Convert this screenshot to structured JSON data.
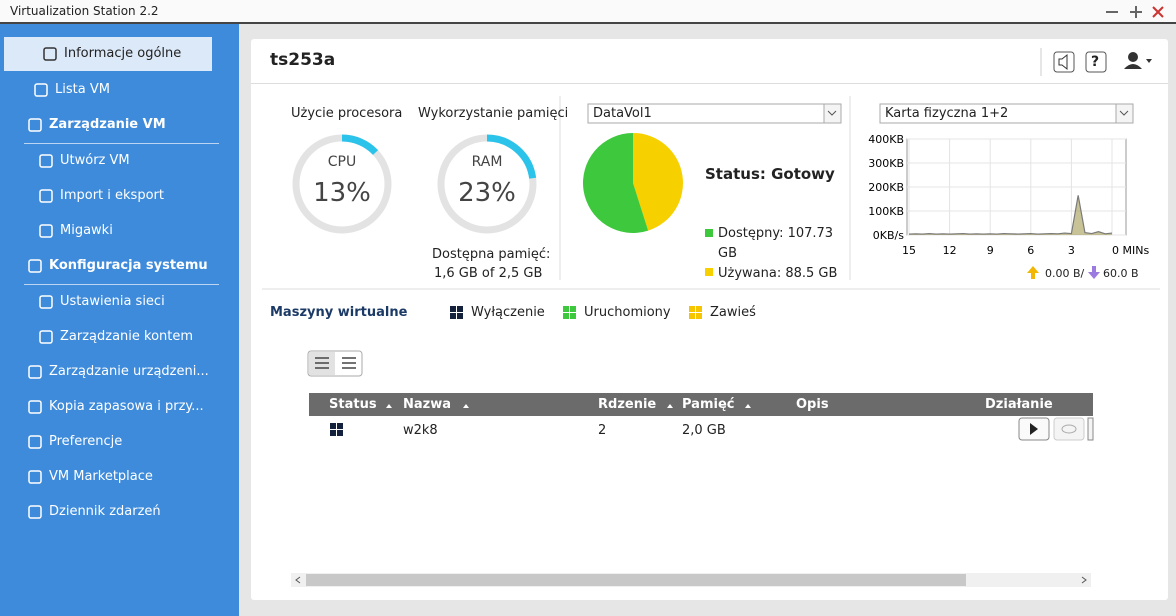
{
  "window": {
    "title": "Virtualization Station 2.2"
  },
  "sidebar": {
    "items": [
      "Informacje ogólne",
      "Lista VM",
      "Zarządzanie VM",
      "Utwórz VM",
      "Import i eksport",
      "Migawki",
      "Konfiguracja systemu",
      "Ustawienia sieci",
      "Zarządzanie kontem",
      "Zarządzanie urządzeni...",
      "Kopia zapasowa i przy...",
      "Preferencje",
      "VM Marketplace",
      "Dziennik zdarzeń"
    ]
  },
  "header": {
    "title": "ts253a",
    "help": "?"
  },
  "cpu": {
    "label": "Użycie procesora",
    "name": "CPU",
    "value": 13,
    "value_label": "13%"
  },
  "ram": {
    "label": "Wykorzystanie pamięci",
    "name": "RAM",
    "value": 23,
    "value_label": "23%",
    "available_label": "Dostępna pamięć:",
    "available": "1,6 GB of 2,5 GB"
  },
  "storage": {
    "volume": "DataVol1",
    "status": "Status: Gotowy",
    "slices": [
      {
        "label": "Dostępny: 107.73 GB",
        "value": 107.73,
        "color": "#3ec83e"
      },
      {
        "label": "Używana: 88.5 GB",
        "value": 88.5,
        "color": "#f7d000"
      }
    ]
  },
  "network": {
    "adapter": "Karta fizyczna 1+2",
    "ylim": [
      0,
      400
    ],
    "yticks": [
      {
        "value": 0,
        "label": "0KB/s"
      },
      {
        "value": 100,
        "label": "100KB"
      },
      {
        "value": 200,
        "label": "200KB"
      },
      {
        "value": 300,
        "label": "300KB"
      },
      {
        "value": 400,
        "label": "400KB"
      }
    ],
    "xlim": [
      15,
      0
    ],
    "xticks": [
      15,
      12,
      9,
      6,
      3,
      {
        "value": 0,
        "label": "0 MINs"
      }
    ],
    "x": [
      15,
      14.5,
      14,
      13.5,
      13,
      12.5,
      12,
      11.5,
      11,
      10.5,
      10,
      9.5,
      9,
      8.5,
      8,
      7.5,
      7,
      6.5,
      6,
      5.5,
      5,
      4.5,
      4,
      3.5,
      3,
      2.5,
      2,
      1.5,
      1,
      0.5,
      0
    ],
    "values": [
      4,
      5,
      4,
      6,
      4,
      5,
      4,
      5,
      6,
      4,
      5,
      4,
      5,
      4,
      6,
      5,
      4,
      5,
      6,
      4,
      5,
      6,
      5,
      8,
      6,
      165,
      10,
      6,
      14,
      5,
      8
    ],
    "color": "#a39a52",
    "up": "0.00 B/",
    "down": "60.0 B"
  },
  "vms": {
    "title": "Maszyny wirtualne",
    "legend": [
      "Wyłączenie",
      "Uruchomiony",
      "Zawieś"
    ],
    "columns": [
      "Status",
      "Nazwa",
      "Rdzenie",
      "Pamięć",
      "Opis",
      "Działanie"
    ],
    "rows": [
      [
        "w2k8",
        "2",
        "2,0 GB"
      ]
    ]
  }
}
